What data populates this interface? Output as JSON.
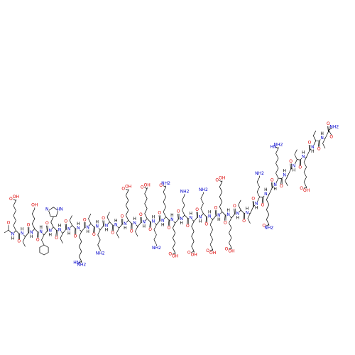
{
  "structure": {
    "backbone": {
      "carbonyl": "O",
      "amide_n": "N",
      "amide_h": "H"
    },
    "n_terminus": {
      "carbonyl": "O"
    },
    "c_terminus": {
      "carbonyl": "O",
      "amide": "NH2"
    },
    "residues": [
      {
        "labels": [
          "O",
          "OH"
        ]
      },
      {},
      {
        "labels": [
          "OH"
        ]
      },
      {
        "ring": 6
      },
      {
        "ring": 5,
        "labels": [
          "N",
          "HN"
        ]
      },
      {},
      {},
      {
        "labels": [
          "HN",
          "NH2"
        ]
      },
      {},
      {
        "labels": [
          "NH2"
        ]
      },
      {},
      {},
      {
        "labels": [
          "O",
          "OH"
        ]
      },
      {},
      {
        "labels": [
          "O",
          "OH"
        ]
      },
      {
        "labels": [
          "NH2"
        ]
      },
      {
        "labels": [
          "O",
          "NH2"
        ]
      },
      {
        "labels": [
          "O",
          "OH"
        ]
      },
      {
        "labels": [
          "NH2"
        ]
      },
      {
        "labels": [
          "O",
          "OH"
        ]
      },
      {
        "labels": [
          "NH2"
        ]
      },
      {
        "labels": [
          "O",
          "OH"
        ]
      },
      {
        "labels": [
          "O",
          "OH"
        ]
      },
      {
        "labels": [
          "O",
          "OH"
        ]
      },
      {},
      {},
      {
        "labels": [
          "NH2"
        ]
      },
      {
        "labels": [
          "O",
          "NH2"
        ]
      },
      {
        "labels": [
          "HN",
          "NH2"
        ]
      },
      {},
      {},
      {
        "labels": [
          "O",
          "OH"
        ]
      },
      {},
      {}
    ]
  }
}
